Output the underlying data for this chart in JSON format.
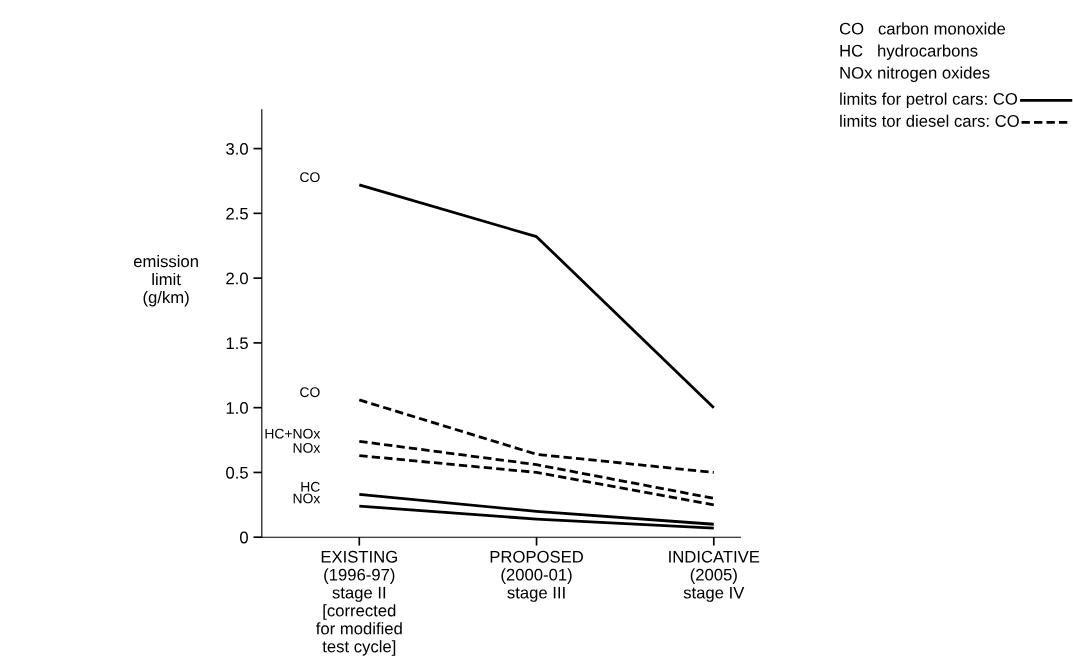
{
  "chart_data": {
    "type": "line",
    "ylabel": "emission\nlimit\n(g/km)",
    "categories": [
      "EXISTING\n(1996-97)\nstage II\n[corrected\nfor modified\ntest cycle]",
      "PROPOSED\n(2000-01)\nstage III",
      "INDICATIVE\n(2005)\nstage IV"
    ],
    "series": [
      {
        "name": "CO",
        "color": "#000000",
        "line_style": "solid",
        "values": [
          2.72,
          2.32,
          1.0
        ]
      },
      {
        "name": "CO",
        "color": "#000000",
        "line_style": "dashed",
        "values": [
          1.06,
          0.64,
          0.5
        ]
      },
      {
        "name": "HC+NOx",
        "color": "#000000",
        "line_style": "dashed",
        "values": [
          0.74,
          0.56,
          0.3
        ]
      },
      {
        "name": "NOx",
        "color": "#000000",
        "line_style": "dashed",
        "values": [
          0.63,
          0.5,
          0.25
        ]
      },
      {
        "name": "HC",
        "color": "#000000",
        "line_style": "solid",
        "values": [
          0.33,
          0.2,
          0.1
        ]
      },
      {
        "name": "NOx",
        "color": "#000000",
        "line_style": "solid",
        "values": [
          0.24,
          0.14,
          0.07
        ]
      }
    ],
    "ylim": [
      0,
      3.3
    ],
    "yticks": [
      {
        "value": 0,
        "label": "0"
      },
      {
        "value": 0.5,
        "label": "0.5"
      },
      {
        "value": 1.0,
        "label": "1.0"
      },
      {
        "value": 1.5,
        "label": "1.5"
      },
      {
        "value": 2.0,
        "label": "2.0"
      },
      {
        "value": 2.5,
        "label": "2.5"
      },
      {
        "value": 3.0,
        "label": "3.0"
      }
    ],
    "grid": false,
    "legend": false,
    "annotations": [
      "CO   carbon monoxide",
      "HC   hydrocarbons",
      "NOx nitrogen oxides",
      "limits for petrol cars: CO",
      "limits tor diesel cars: CO"
    ]
  }
}
